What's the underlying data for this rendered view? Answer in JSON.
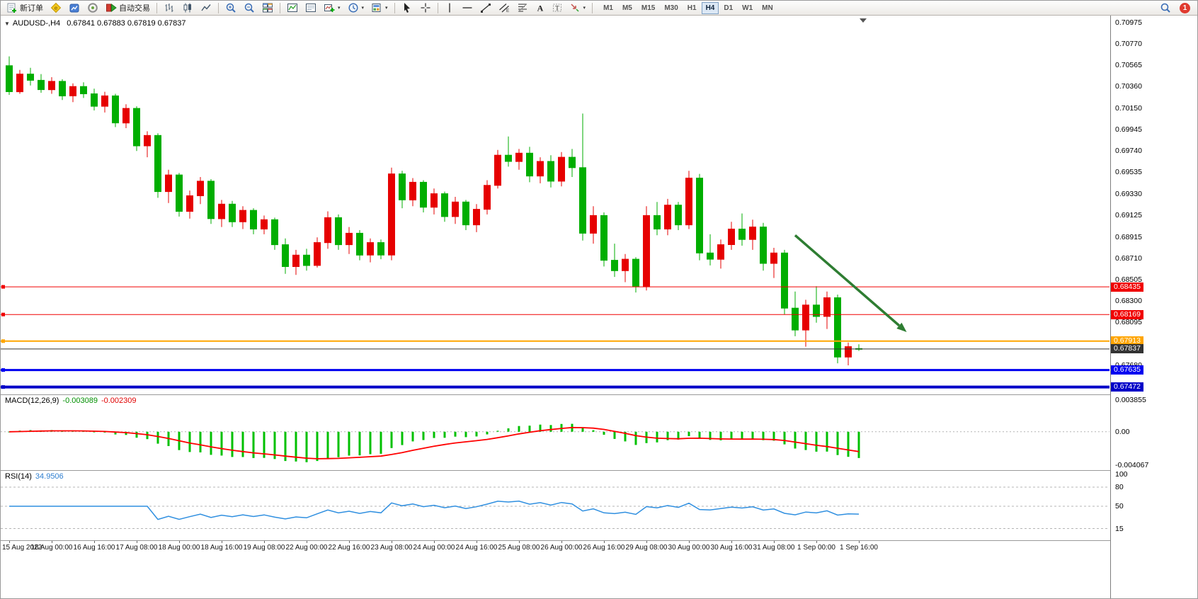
{
  "toolbar": {
    "new_order": "新订单",
    "auto_trading": "自动交易",
    "timeframes": [
      "M1",
      "M5",
      "M15",
      "M30",
      "H1",
      "H4",
      "D1",
      "W1",
      "MN"
    ],
    "active_timeframe": "H4",
    "notification_badge": "1",
    "icon_names": [
      "new-order-icon",
      "metaeditor-icon",
      "market-icon",
      "community-icon",
      "auto-trading-icon",
      "bar-chart-icon",
      "candle-chart-icon",
      "line-chart-icon",
      "zoom-in-icon",
      "zoom-out-icon",
      "tile-windows-icon",
      "indicator-window-icon",
      "data-window-icon",
      "add-indicator-icon",
      "periods-icon",
      "templates-icon",
      "cursor-icon",
      "crosshair-icon",
      "vertical-line-icon",
      "horizontal-line-icon",
      "trendline-icon",
      "channel-icon",
      "fibonacci-icon",
      "text-icon",
      "label-icon",
      "arrows-icon",
      "search-icon",
      "notification-icon",
      "collapse-arrow-icon"
    ]
  },
  "chart": {
    "symbol_title": "AUDUSD-,H4",
    "ohlc_display": "0.67841 0.67883 0.67819 0.67837"
  },
  "macd_panel": {
    "label": "MACD(12,26,9)",
    "macd_value": "-0.003089",
    "signal_value": "-0.002309",
    "axis": [
      "0.003855",
      "0.00",
      "-0.004067"
    ]
  },
  "rsi_panel": {
    "label": "RSI(14)",
    "value": "34.9506",
    "axis": [
      "100",
      "80",
      "50",
      "15"
    ]
  },
  "chart_data": {
    "type": "candlestick",
    "symbol": "AUDUSD-",
    "timeframe": "H4",
    "current_ohlc": {
      "open": 0.67841,
      "high": 0.67883,
      "low": 0.67819,
      "close": 0.67837
    },
    "view": {
      "price_top": 0.71042,
      "price_bottom": 0.67401
    },
    "colors": {
      "bull": "#e60000",
      "bear": "#00ae00",
      "macd_histogram": "#00c000",
      "macd_signal": "#ff0000",
      "rsi_line": "#2f8fe0",
      "level_dash": "#b4b4b4"
    },
    "price_axis_ticks": [
      "0.70975",
      "0.70770",
      "0.70565",
      "0.70360",
      "0.70150",
      "0.69945",
      "0.69740",
      "0.69535",
      "0.69330",
      "0.69125",
      "0.68915",
      "0.68710",
      "0.68505",
      "0.68300",
      "0.68095",
      "0.67680"
    ],
    "horizontal_lines": [
      {
        "price": 0.68435,
        "label": "0.68435",
        "color": "#f00000",
        "width": 1,
        "object": true
      },
      {
        "price": 0.68169,
        "label": "0.68169",
        "color": "#f00000",
        "width": 1,
        "object": true
      },
      {
        "price": 0.67913,
        "label": "0.67913",
        "color": "#ffa500",
        "width": 2,
        "object": true
      },
      {
        "price": 0.67837,
        "label": "0.67837",
        "color": "#333333",
        "width": 1,
        "object": false
      },
      {
        "price": 0.67635,
        "label": "0.67635",
        "color": "#0000f0",
        "width": 3,
        "object": true
      },
      {
        "price": 0.67472,
        "label": "0.67472",
        "color": "#0000c8",
        "width": 4,
        "object": true
      }
    ],
    "arrow_annotation": {
      "from_index": 74,
      "from_price": 0.6893,
      "to_index": 84.5,
      "to_price": 0.68,
      "color": "#2e7d32"
    },
    "time_labels": [
      {
        "index": 0,
        "label": "15 Aug 2022"
      },
      {
        "index": 4,
        "label": "16 Aug 00:00"
      },
      {
        "index": 8,
        "label": "16 Aug 16:00"
      },
      {
        "index": 12,
        "label": "17 Aug 08:00"
      },
      {
        "index": 16,
        "label": "18 Aug 00:00"
      },
      {
        "index": 20,
        "label": "18 Aug 16:00"
      },
      {
        "index": 24,
        "label": "19 Aug 08:00"
      },
      {
        "index": 28,
        "label": "22 Aug 00:00"
      },
      {
        "index": 32,
        "label": "22 Aug 16:00"
      },
      {
        "index": 36,
        "label": "23 Aug 08:00"
      },
      {
        "index": 40,
        "label": "24 Aug 00:00"
      },
      {
        "index": 44,
        "label": "24 Aug 16:00"
      },
      {
        "index": 48,
        "label": "25 Aug 08:00"
      },
      {
        "index": 52,
        "label": "26 Aug 00:00"
      },
      {
        "index": 56,
        "label": "26 Aug 16:00"
      },
      {
        "index": 60,
        "label": "29 Aug 08:00"
      },
      {
        "index": 64,
        "label": "30 Aug 00:00"
      },
      {
        "index": 68,
        "label": "30 Aug 16:00"
      },
      {
        "index": 72,
        "label": "31 Aug 08:00"
      },
      {
        "index": 76,
        "label": "1 Sep 00:00"
      },
      {
        "index": 80,
        "label": "1 Sep 16:00"
      }
    ],
    "candles": [
      [
        0.7056,
        0.7065,
        0.7028,
        0.7031
      ],
      [
        0.7031,
        0.7052,
        0.7029,
        0.7048
      ],
      [
        0.7048,
        0.7054,
        0.7037,
        0.7042
      ],
      [
        0.7042,
        0.7048,
        0.703,
        0.7033
      ],
      [
        0.7033,
        0.7045,
        0.7029,
        0.7041
      ],
      [
        0.7041,
        0.7043,
        0.7023,
        0.7027
      ],
      [
        0.7027,
        0.7039,
        0.7021,
        0.7036
      ],
      [
        0.7036,
        0.704,
        0.7025,
        0.7029
      ],
      [
        0.7029,
        0.7034,
        0.7013,
        0.7017
      ],
      [
        0.7017,
        0.7031,
        0.7011,
        0.7027
      ],
      [
        0.7027,
        0.7029,
        0.6997,
        0.7001
      ],
      [
        0.7001,
        0.7019,
        0.6996,
        0.7015
      ],
      [
        0.7015,
        0.7017,
        0.6974,
        0.6979
      ],
      [
        0.6979,
        0.6993,
        0.6968,
        0.6989
      ],
      [
        0.6989,
        0.6991,
        0.6929,
        0.6935
      ],
      [
        0.6935,
        0.6956,
        0.6924,
        0.6951
      ],
      [
        0.6951,
        0.6953,
        0.6911,
        0.6916
      ],
      [
        0.6916,
        0.6936,
        0.6909,
        0.6931
      ],
      [
        0.6931,
        0.6949,
        0.6923,
        0.6945
      ],
      [
        0.6945,
        0.6947,
        0.6904,
        0.6909
      ],
      [
        0.6909,
        0.6927,
        0.6901,
        0.6923
      ],
      [
        0.6923,
        0.6926,
        0.6901,
        0.6906
      ],
      [
        0.6906,
        0.6921,
        0.6899,
        0.6917
      ],
      [
        0.6917,
        0.6919,
        0.6894,
        0.6899
      ],
      [
        0.6899,
        0.6912,
        0.6894,
        0.6908
      ],
      [
        0.6908,
        0.691,
        0.6879,
        0.6884
      ],
      [
        0.6884,
        0.689,
        0.6856,
        0.6863
      ],
      [
        0.6863,
        0.6879,
        0.6855,
        0.6874
      ],
      [
        0.6874,
        0.688,
        0.6859,
        0.6864
      ],
      [
        0.6864,
        0.6891,
        0.6862,
        0.6886
      ],
      [
        0.6886,
        0.6916,
        0.688,
        0.691
      ],
      [
        0.691,
        0.6913,
        0.6879,
        0.6884
      ],
      [
        0.6884,
        0.6901,
        0.6875,
        0.6895
      ],
      [
        0.6895,
        0.6898,
        0.6869,
        0.6874
      ],
      [
        0.6874,
        0.689,
        0.6867,
        0.6886
      ],
      [
        0.6886,
        0.6889,
        0.687,
        0.6874
      ],
      [
        0.6874,
        0.6958,
        0.6869,
        0.6952
      ],
      [
        0.6952,
        0.6955,
        0.6919,
        0.6927
      ],
      [
        0.6927,
        0.6948,
        0.6921,
        0.6944
      ],
      [
        0.6944,
        0.6946,
        0.6915,
        0.692
      ],
      [
        0.692,
        0.6938,
        0.6913,
        0.6933
      ],
      [
        0.6933,
        0.6935,
        0.6906,
        0.6911
      ],
      [
        0.6911,
        0.693,
        0.6904,
        0.6925
      ],
      [
        0.6925,
        0.6927,
        0.6898,
        0.6903
      ],
      [
        0.6903,
        0.6923,
        0.6896,
        0.6918
      ],
      [
        0.6918,
        0.6946,
        0.6913,
        0.6941
      ],
      [
        0.6941,
        0.6975,
        0.6938,
        0.697
      ],
      [
        0.697,
        0.6988,
        0.6959,
        0.6964
      ],
      [
        0.6964,
        0.6976,
        0.6956,
        0.6972
      ],
      [
        0.6972,
        0.6978,
        0.6944,
        0.695
      ],
      [
        0.695,
        0.6968,
        0.6943,
        0.6964
      ],
      [
        0.6964,
        0.697,
        0.6939,
        0.6945
      ],
      [
        0.6945,
        0.6973,
        0.694,
        0.6968
      ],
      [
        0.6968,
        0.6976,
        0.6949,
        0.6958
      ],
      [
        0.6958,
        0.701,
        0.6888,
        0.6895
      ],
      [
        0.6895,
        0.6921,
        0.6885,
        0.6912
      ],
      [
        0.6912,
        0.6915,
        0.6863,
        0.6869
      ],
      [
        0.6869,
        0.6885,
        0.6853,
        0.6859
      ],
      [
        0.6859,
        0.6875,
        0.6848,
        0.687
      ],
      [
        0.687,
        0.6872,
        0.6838,
        0.6844
      ],
      [
        0.6844,
        0.6921,
        0.684,
        0.6912
      ],
      [
        0.6912,
        0.6925,
        0.6893,
        0.6899
      ],
      [
        0.6899,
        0.6928,
        0.6893,
        0.6922
      ],
      [
        0.6922,
        0.6925,
        0.6898,
        0.6903
      ],
      [
        0.6903,
        0.6955,
        0.6899,
        0.6948
      ],
      [
        0.6948,
        0.6952,
        0.6869,
        0.6876
      ],
      [
        0.6876,
        0.6894,
        0.6864,
        0.687
      ],
      [
        0.687,
        0.6889,
        0.6861,
        0.6884
      ],
      [
        0.6884,
        0.6906,
        0.6879,
        0.6899
      ],
      [
        0.6899,
        0.6914,
        0.6883,
        0.6889
      ],
      [
        0.6889,
        0.6908,
        0.6879,
        0.6901
      ],
      [
        0.6901,
        0.6905,
        0.6859,
        0.6866
      ],
      [
        0.6866,
        0.6881,
        0.6852,
        0.6876
      ],
      [
        0.6876,
        0.6879,
        0.6817,
        0.6823
      ],
      [
        0.6823,
        0.6839,
        0.6796,
        0.6802
      ],
      [
        0.6802,
        0.6831,
        0.6786,
        0.6826
      ],
      [
        0.6826,
        0.6844,
        0.6809,
        0.6815
      ],
      [
        0.6815,
        0.6839,
        0.6803,
        0.6833
      ],
      [
        0.6833,
        0.6836,
        0.677,
        0.6776
      ],
      [
        0.6776,
        0.679,
        0.6768,
        0.6786
      ],
      [
        0.67841,
        0.67883,
        0.67819,
        0.67837
      ]
    ],
    "indicators": [
      {
        "type": "MACD",
        "params": [
          12,
          26,
          9
        ],
        "current": [
          -0.003089,
          -0.002309
        ],
        "scale": {
          "max": 0.003855,
          "min": -0.004067
        }
      },
      {
        "type": "RSI",
        "params": [
          14
        ],
        "current": 34.9506,
        "levels": [
          80,
          50,
          15
        ],
        "scale": {
          "max": 100,
          "min": 0
        }
      }
    ]
  }
}
